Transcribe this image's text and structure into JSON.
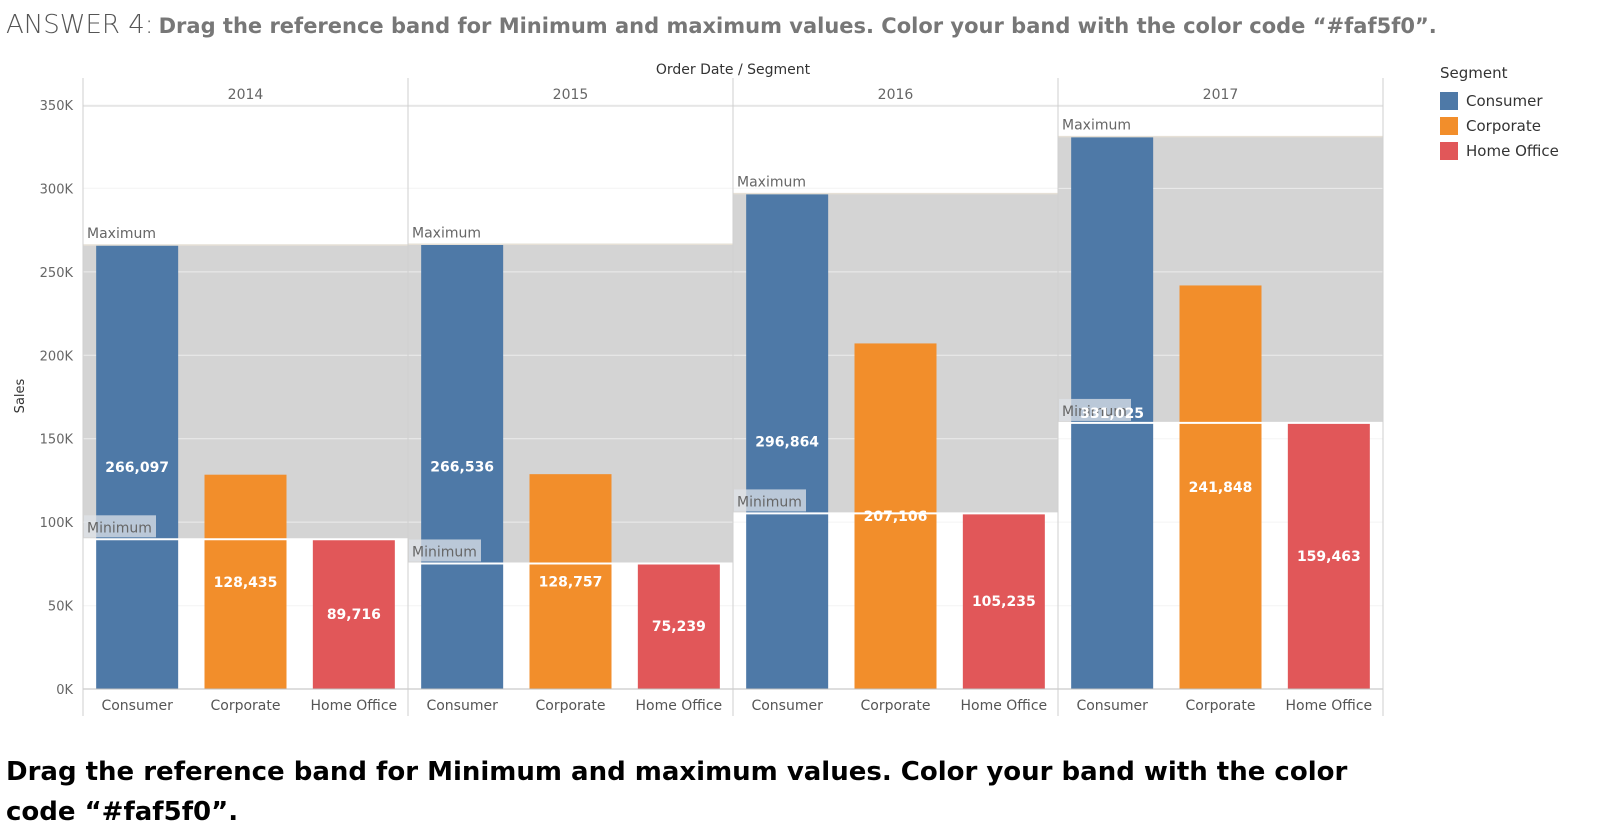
{
  "title": {
    "prefix": "ANSWER 4:",
    "text": "Drag the reference band for Minimum and maximum values. Color your band with the color code “#faf5f0”."
  },
  "bottom_note": "Drag the reference band for Minimum and maximum values. Color your band with the color code “#faf5f0”.",
  "legend": {
    "title": "Segment",
    "items": [
      {
        "label": "Consumer",
        "color": "#4e79a7"
      },
      {
        "label": "Corporate",
        "color": "#f28e2b"
      },
      {
        "label": "Home Office",
        "color": "#e15759"
      }
    ]
  },
  "chart_data": {
    "type": "bar",
    "column_header": "Order Date  /  Segment",
    "ylabel": "Sales",
    "ylim": [
      0,
      350000
    ],
    "yticks": [
      0,
      50000,
      100000,
      150000,
      200000,
      250000,
      300000,
      350000
    ],
    "ytick_labels": [
      "0K",
      "50K",
      "100K",
      "150K",
      "200K",
      "250K",
      "300K",
      "350K"
    ],
    "categories": [
      "Consumer",
      "Corporate",
      "Home Office"
    ],
    "band_color": "#d4d4d4",
    "band_labels": {
      "max": "Maximum",
      "min": "Minimum"
    },
    "panels": [
      {
        "year": "2014",
        "values": [
          266097,
          128435,
          89716
        ],
        "labels": [
          "266,097",
          "128,435",
          "89,716"
        ]
      },
      {
        "year": "2015",
        "values": [
          266536,
          128757,
          75239
        ],
        "labels": [
          "266,536",
          "128,757",
          "75,239"
        ]
      },
      {
        "year": "2016",
        "values": [
          296864,
          207106,
          105235
        ],
        "labels": [
          "296,864",
          "207,106",
          "105,235"
        ]
      },
      {
        "year": "2017",
        "values": [
          331025,
          241848,
          159463
        ],
        "labels": [
          "331,025",
          "241,848",
          "159,463"
        ]
      }
    ]
  }
}
